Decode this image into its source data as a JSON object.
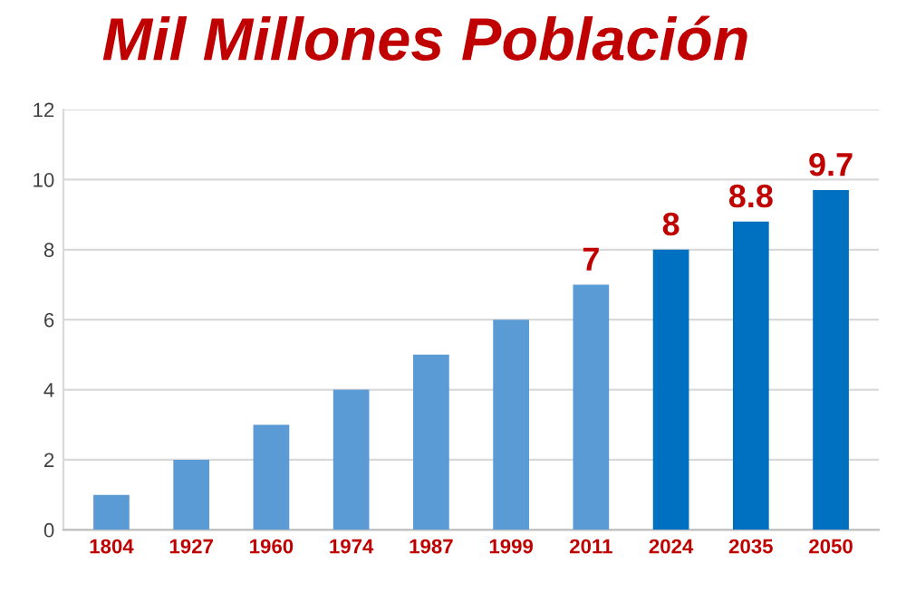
{
  "chart_data": {
    "type": "bar",
    "title": "Mil Millones Población",
    "categories": [
      "1804",
      "1927",
      "1960",
      "1974",
      "1987",
      "1999",
      "2011",
      "2024",
      "2035",
      "2050"
    ],
    "values": [
      1,
      2,
      3,
      4,
      5,
      6,
      7,
      8,
      8.8,
      9.7
    ],
    "colors": [
      "#5b9bd5",
      "#5b9bd5",
      "#5b9bd5",
      "#5b9bd5",
      "#5b9bd5",
      "#5b9bd5",
      "#5b9bd5",
      "#0070c0",
      "#0070c0",
      "#0070c0"
    ],
    "value_labels": [
      null,
      null,
      null,
      null,
      null,
      null,
      "7",
      "8",
      "8.8",
      "9.7"
    ],
    "ylim": [
      0,
      12
    ],
    "yticks": [
      0,
      2,
      4,
      6,
      8,
      10,
      12
    ],
    "grid": "y"
  }
}
